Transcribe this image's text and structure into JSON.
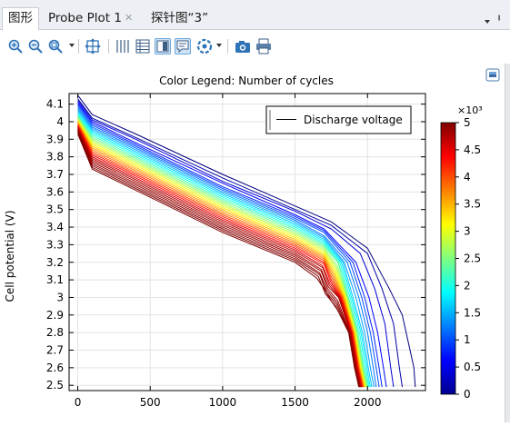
{
  "tabs": [
    {
      "label": "图形",
      "active": true
    },
    {
      "label": "Probe Plot 1",
      "active": false
    },
    {
      "label": "探针图“3”",
      "active": false
    }
  ],
  "toolbar": {
    "icons": [
      "zoom-in-icon",
      "zoom-out-icon",
      "zoom-box-icon",
      "zoom-extents-icon",
      "grid-icon",
      "table-icon",
      "legend-icon",
      "tooltip-icon",
      "color-icon",
      "camera-icon",
      "print-icon"
    ],
    "accent": "#2f73b7"
  },
  "chart_data": {
    "type": "line",
    "title": "Color Legend: Number of cycles",
    "xlabel": "",
    "ylabel": "Cell potential (V)",
    "xlim": [
      -60,
      2400
    ],
    "ylim": [
      2.47,
      4.16
    ],
    "xticks": [
      "0",
      "500",
      "1000",
      "1500",
      "2000"
    ],
    "yticks": [
      "2.5",
      "2.6",
      "2.7",
      "2.8",
      "2.9",
      "3",
      "3.1",
      "3.2",
      "3.3",
      "3.4",
      "3.5",
      "3.6",
      "3.7",
      "3.8",
      "3.9",
      "4",
      "4.1"
    ],
    "grid": true,
    "legend": {
      "label": "Discharge voltage",
      "position": "top-right"
    },
    "colorbar": {
      "label": "×10³",
      "min": 0,
      "max": 5,
      "ticks": [
        "0",
        "0.5",
        "1",
        "1.5",
        "2",
        "2.5",
        "3",
        "3.5",
        "4",
        "4.5",
        "5"
      ]
    },
    "series_count": 31,
    "series": [
      {
        "cycles": 0,
        "x": [
          0,
          100,
          400,
          1000,
          1500,
          1750,
          2000,
          2150,
          2240,
          2320,
          2330
        ],
        "y": [
          4.15,
          4.04,
          3.93,
          3.7,
          3.52,
          3.43,
          3.28,
          3.05,
          2.9,
          2.6,
          2.49
        ]
      },
      {
        "cycles": 200,
        "x": [
          0,
          100,
          400,
          1000,
          1500,
          1750,
          2000,
          2100,
          2180,
          2220,
          2240
        ],
        "y": [
          4.13,
          4.02,
          3.91,
          3.68,
          3.5,
          3.41,
          3.25,
          3.05,
          2.85,
          2.6,
          2.49
        ]
      },
      {
        "cycles": 400,
        "x": [
          0,
          100,
          400,
          1000,
          1500,
          1750,
          1950,
          2050,
          2120,
          2160,
          2180
        ],
        "y": [
          4.12,
          4.01,
          3.9,
          3.66,
          3.49,
          3.39,
          3.25,
          3.05,
          2.85,
          2.6,
          2.49
        ]
      },
      {
        "cycles": 600,
        "x": [
          0,
          100,
          400,
          1000,
          1500,
          1700,
          1920,
          2010,
          2070,
          2110,
          2130
        ],
        "y": [
          4.11,
          4.0,
          3.88,
          3.65,
          3.47,
          3.39,
          3.2,
          3.0,
          2.8,
          2.6,
          2.49
        ]
      },
      {
        "cycles": 800,
        "x": [
          0,
          100,
          400,
          1000,
          1500,
          1700,
          1900,
          1980,
          2040,
          2080,
          2100
        ],
        "y": [
          4.1,
          3.99,
          3.87,
          3.63,
          3.46,
          3.38,
          3.2,
          3.0,
          2.8,
          2.6,
          2.49
        ]
      },
      {
        "cycles": 1000,
        "x": [
          0,
          100,
          400,
          1000,
          1500,
          1700,
          1880,
          1960,
          2020,
          2060,
          2080
        ],
        "y": [
          4.09,
          3.98,
          3.86,
          3.62,
          3.45,
          3.37,
          3.2,
          3.0,
          2.8,
          2.6,
          2.49
        ]
      },
      {
        "cycles": 1200,
        "x": [
          0,
          100,
          400,
          1000,
          1500,
          1700,
          1860,
          1940,
          2000,
          2040,
          2060
        ],
        "y": [
          4.08,
          3.97,
          3.85,
          3.61,
          3.44,
          3.35,
          3.2,
          3.0,
          2.8,
          2.6,
          2.49
        ]
      },
      {
        "cycles": 1400,
        "x": [
          0,
          100,
          400,
          1000,
          1500,
          1700,
          1840,
          1920,
          1980,
          2020,
          2045
        ],
        "y": [
          4.07,
          3.96,
          3.84,
          3.6,
          3.43,
          3.34,
          3.2,
          3.0,
          2.8,
          2.6,
          2.49
        ]
      },
      {
        "cycles": 1600,
        "x": [
          0,
          100,
          400,
          1000,
          1500,
          1700,
          1830,
          1900,
          1965,
          2005,
          2030
        ],
        "y": [
          4.06,
          3.95,
          3.83,
          3.59,
          3.42,
          3.33,
          3.2,
          3.0,
          2.8,
          2.6,
          2.49
        ]
      },
      {
        "cycles": 1800,
        "x": [
          0,
          100,
          400,
          1000,
          1500,
          1700,
          1820,
          1890,
          1955,
          1995,
          2020
        ],
        "y": [
          4.05,
          3.94,
          3.82,
          3.58,
          3.41,
          3.32,
          3.2,
          3.0,
          2.8,
          2.6,
          2.49
        ]
      },
      {
        "cycles": 2000,
        "x": [
          0,
          100,
          400,
          1000,
          1500,
          1700,
          1810,
          1880,
          1945,
          1985,
          2012
        ],
        "y": [
          4.04,
          3.93,
          3.81,
          3.57,
          3.4,
          3.31,
          3.2,
          3.0,
          2.8,
          2.6,
          2.49
        ]
      },
      {
        "cycles": 2200,
        "x": [
          0,
          100,
          400,
          1000,
          1500,
          1700,
          1800,
          1870,
          1935,
          1975,
          2005
        ],
        "y": [
          4.035,
          3.92,
          3.8,
          3.56,
          3.39,
          3.3,
          3.2,
          3.0,
          2.8,
          2.6,
          2.49
        ]
      },
      {
        "cycles": 2400,
        "x": [
          0,
          100,
          400,
          1000,
          1500,
          1700,
          1795,
          1865,
          1930,
          1970,
          2000
        ],
        "y": [
          4.03,
          3.91,
          3.79,
          3.55,
          3.38,
          3.29,
          3.2,
          3.0,
          2.8,
          2.6,
          2.49
        ]
      },
      {
        "cycles": 2600,
        "x": [
          0,
          100,
          400,
          1000,
          1500,
          1700,
          1790,
          1860,
          1925,
          1965,
          1995
        ],
        "y": [
          4.02,
          3.9,
          3.78,
          3.54,
          3.37,
          3.28,
          3.18,
          3.0,
          2.8,
          2.6,
          2.49
        ]
      },
      {
        "cycles": 2800,
        "x": [
          0,
          100,
          400,
          1000,
          1500,
          1700,
          1785,
          1855,
          1920,
          1960,
          1990
        ],
        "y": [
          4.015,
          3.89,
          3.77,
          3.53,
          3.36,
          3.27,
          3.17,
          3.0,
          2.8,
          2.6,
          2.49
        ]
      },
      {
        "cycles": 3000,
        "x": [
          0,
          100,
          400,
          1000,
          1500,
          1700,
          1780,
          1850,
          1915,
          1955,
          1985
        ],
        "y": [
          4.01,
          3.88,
          3.76,
          3.52,
          3.35,
          3.26,
          3.16,
          3.0,
          2.8,
          2.6,
          2.49
        ]
      },
      {
        "cycles": 3200,
        "x": [
          0,
          100,
          400,
          1000,
          1500,
          1700,
          1775,
          1845,
          1912,
          1952,
          1982
        ],
        "y": [
          4.005,
          3.87,
          3.75,
          3.51,
          3.34,
          3.25,
          3.15,
          3.0,
          2.8,
          2.6,
          2.49
        ]
      },
      {
        "cycles": 3400,
        "x": [
          0,
          100,
          400,
          1000,
          1500,
          1700,
          1770,
          1840,
          1908,
          1948,
          1978
        ],
        "y": [
          4.0,
          3.86,
          3.74,
          3.5,
          3.33,
          3.24,
          3.14,
          3.0,
          2.8,
          2.6,
          2.49
        ]
      },
      {
        "cycles": 3600,
        "x": [
          0,
          100,
          400,
          1000,
          1500,
          1700,
          1765,
          1835,
          1905,
          1945,
          1975
        ],
        "y": [
          3.995,
          3.85,
          3.73,
          3.49,
          3.32,
          3.23,
          3.13,
          3.0,
          2.8,
          2.6,
          2.49
        ]
      },
      {
        "cycles": 3800,
        "x": [
          0,
          100,
          400,
          1000,
          1500,
          1700,
          1760,
          1830,
          1902,
          1942,
          1972
        ],
        "y": [
          3.99,
          3.84,
          3.72,
          3.48,
          3.31,
          3.22,
          3.12,
          3.0,
          2.8,
          2.6,
          2.49
        ]
      },
      {
        "cycles": 4000,
        "x": [
          0,
          100,
          400,
          1000,
          1500,
          1700,
          1755,
          1825,
          1898,
          1938,
          1968
        ],
        "y": [
          3.985,
          3.83,
          3.71,
          3.47,
          3.3,
          3.21,
          3.11,
          3.0,
          2.8,
          2.6,
          2.49
        ]
      },
      {
        "cycles": 4200,
        "x": [
          0,
          100,
          400,
          1000,
          1500,
          1700,
          1750,
          1820,
          1895,
          1935,
          1965
        ],
        "y": [
          3.98,
          3.82,
          3.7,
          3.46,
          3.29,
          3.2,
          3.1,
          3.0,
          2.8,
          2.6,
          2.49
        ]
      },
      {
        "cycles": 4400,
        "x": [
          0,
          100,
          400,
          1000,
          1500,
          1700,
          1745,
          1815,
          1892,
          1932,
          1962
        ],
        "y": [
          3.975,
          3.81,
          3.69,
          3.45,
          3.28,
          3.19,
          3.09,
          3.0,
          2.8,
          2.6,
          2.49
        ]
      },
      {
        "cycles": 4600,
        "x": [
          0,
          100,
          400,
          1000,
          1500,
          1690,
          1740,
          1810,
          1888,
          1928,
          1958
        ],
        "y": [
          3.97,
          3.8,
          3.68,
          3.44,
          3.27,
          3.18,
          3.08,
          3.0,
          2.8,
          2.6,
          2.49
        ]
      },
      {
        "cycles": 4700,
        "x": [
          0,
          100,
          400,
          1000,
          1500,
          1690,
          1735,
          1805,
          1885,
          1925,
          1955
        ],
        "y": [
          3.965,
          3.79,
          3.67,
          3.43,
          3.26,
          3.17,
          3.07,
          3.0,
          2.8,
          2.6,
          2.49
        ]
      },
      {
        "cycles": 4800,
        "x": [
          0,
          100,
          400,
          1000,
          1500,
          1680,
          1730,
          1800,
          1882,
          1922,
          1952
        ],
        "y": [
          3.96,
          3.78,
          3.66,
          3.42,
          3.25,
          3.16,
          3.06,
          3.0,
          2.8,
          2.6,
          2.49
        ]
      },
      {
        "cycles": 4850,
        "x": [
          0,
          100,
          400,
          1000,
          1500,
          1680,
          1725,
          1795,
          1878,
          1918,
          1948
        ],
        "y": [
          3.955,
          3.77,
          3.65,
          3.41,
          3.24,
          3.15,
          3.05,
          2.98,
          2.8,
          2.6,
          2.49
        ]
      },
      {
        "cycles": 4900,
        "x": [
          0,
          100,
          400,
          1000,
          1500,
          1670,
          1720,
          1790,
          1875,
          1915,
          1945
        ],
        "y": [
          3.95,
          3.76,
          3.64,
          3.4,
          3.23,
          3.14,
          3.04,
          2.97,
          2.8,
          2.6,
          2.49
        ]
      },
      {
        "cycles": 4950,
        "x": [
          0,
          100,
          400,
          1000,
          1500,
          1670,
          1715,
          1785,
          1872,
          1912,
          1942
        ],
        "y": [
          3.945,
          3.75,
          3.63,
          3.39,
          3.22,
          3.13,
          3.03,
          2.96,
          2.8,
          2.6,
          2.49
        ]
      },
      {
        "cycles": 5000,
        "x": [
          0,
          100,
          400,
          1000,
          1500,
          1660,
          1710,
          1780,
          1870,
          1910,
          1940
        ],
        "y": [
          3.94,
          3.74,
          3.62,
          3.38,
          3.21,
          3.12,
          3.02,
          2.95,
          2.8,
          2.6,
          2.49
        ]
      },
      {
        "cycles": 5000,
        "x": [
          0,
          100,
          400,
          1000,
          1500,
          1650,
          1700,
          1750,
          1800
        ],
        "y": [
          3.93,
          3.73,
          3.61,
          3.37,
          3.2,
          3.11,
          3.05,
          2.98,
          2.92
        ]
      }
    ]
  }
}
